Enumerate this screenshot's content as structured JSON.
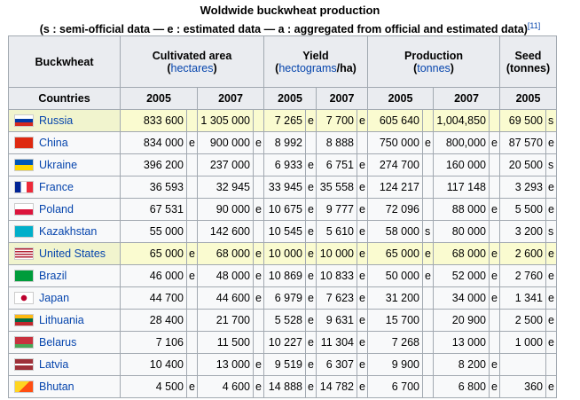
{
  "caption": {
    "title": "Woldwide buckwheat production",
    "subtitle": "(s : semi-official data — e : estimated data — a : aggregated from official and estimated data)",
    "ref": "[11]"
  },
  "headers": {
    "buckwheat": "Buckwheat",
    "area": "Cultivated area",
    "area_unit": "hectares",
    "yield": "Yield",
    "yield_unit_link": "hectograms",
    "yield_unit_rest": "/ha)",
    "production": "Production",
    "production_unit": "tonnes",
    "seed": "Seed",
    "seed_unit": "(tonnes)",
    "countries": "Countries",
    "y2005": "2005",
    "y2007": "2007"
  },
  "rows": [
    {
      "country": "Russia",
      "area05": "833 600",
      "af05": "",
      "area07": "1 305 000",
      "af07": "",
      "yield05": "7 265",
      "yf05": "e",
      "yield07": "7 700",
      "yf07": "e",
      "prod05": "605 640",
      "pf05": "",
      "prod07": "1,004,850",
      "pf07": "",
      "seed05": "69 500",
      "sf05": "s",
      "highlight": true
    },
    {
      "country": "China",
      "area05": "834 000",
      "af05": "e",
      "area07": "900 000",
      "af07": "e",
      "yield05": "8 992",
      "yf05": "",
      "yield07": "8 888",
      "yf07": "",
      "prod05": "750 000",
      "pf05": "e",
      "prod07": "800,000",
      "pf07": "e",
      "seed05": "87 570",
      "sf05": "e",
      "highlight": false
    },
    {
      "country": "Ukraine",
      "area05": "396 200",
      "af05": "",
      "area07": "237 000",
      "af07": "",
      "yield05": "6 933",
      "yf05": "e",
      "yield07": "6 751",
      "yf07": "e",
      "prod05": "274 700",
      "pf05": "",
      "prod07": "160 000",
      "pf07": "",
      "seed05": "20 500",
      "sf05": "s",
      "highlight": false
    },
    {
      "country": "France",
      "area05": "36 593",
      "af05": "",
      "area07": "32 945",
      "af07": "",
      "yield05": "33 945",
      "yf05": "e",
      "yield07": "35 558",
      "yf07": "e",
      "prod05": "124 217",
      "pf05": "",
      "prod07": "117 148",
      "pf07": "",
      "seed05": "3 293",
      "sf05": "e",
      "highlight": false
    },
    {
      "country": "Poland",
      "area05": "67 531",
      "af05": "",
      "area07": "90 000",
      "af07": "e",
      "yield05": "10 675",
      "yf05": "e",
      "yield07": "9 777",
      "yf07": "e",
      "prod05": "72 096",
      "pf05": "",
      "prod07": "88 000",
      "pf07": "e",
      "seed05": "5 500",
      "sf05": "e",
      "highlight": false
    },
    {
      "country": "Kazakhstan",
      "area05": "55 000",
      "af05": "",
      "area07": "142 600",
      "af07": "",
      "yield05": "10 545",
      "yf05": "e",
      "yield07": "5 610",
      "yf07": "e",
      "prod05": "58 000",
      "pf05": "s",
      "prod07": "80 000",
      "pf07": "",
      "seed05": "3 200",
      "sf05": "s",
      "highlight": false
    },
    {
      "country": "United States",
      "area05": "65 000",
      "af05": "e",
      "area07": "68 000",
      "af07": "e",
      "yield05": "10 000",
      "yf05": "e",
      "yield07": "10 000",
      "yf07": "e",
      "prod05": "65 000",
      "pf05": "e",
      "prod07": "68 000",
      "pf07": "e",
      "seed05": "2 600",
      "sf05": "e",
      "highlight": true
    },
    {
      "country": "Brazil",
      "area05": "46 000",
      "af05": "e",
      "area07": "48 000",
      "af07": "e",
      "yield05": "10 869",
      "yf05": "e",
      "yield07": "10 833",
      "yf07": "e",
      "prod05": "50 000",
      "pf05": "e",
      "prod07": "52 000",
      "pf07": "e",
      "seed05": "2 760",
      "sf05": "e",
      "highlight": false
    },
    {
      "country": "Japan",
      "area05": "44 700",
      "af05": "",
      "area07": "44 600",
      "af07": "e",
      "yield05": "6 979",
      "yf05": "e",
      "yield07": "7 623",
      "yf07": "e",
      "prod05": "31 200",
      "pf05": "",
      "prod07": "34 000",
      "pf07": "e",
      "seed05": "1 341",
      "sf05": "e",
      "highlight": false
    },
    {
      "country": "Lithuania",
      "area05": "28 400",
      "af05": "",
      "area07": "21 700",
      "af07": "",
      "yield05": "5 528",
      "yf05": "e",
      "yield07": "9 631",
      "yf07": "e",
      "prod05": "15 700",
      "pf05": "",
      "prod07": "20 900",
      "pf07": "",
      "seed05": "2 500",
      "sf05": "e",
      "highlight": false
    },
    {
      "country": "Belarus",
      "area05": "7 106",
      "af05": "",
      "area07": "11 500",
      "af07": "",
      "yield05": "10 227",
      "yf05": "e",
      "yield07": "11 304",
      "yf07": "e",
      "prod05": "7 268",
      "pf05": "",
      "prod07": "13 000",
      "pf07": "",
      "seed05": "1 000",
      "sf05": "e",
      "highlight": false
    },
    {
      "country": "Latvia",
      "area05": "10 400",
      "af05": "",
      "area07": "13 000",
      "af07": "e",
      "yield05": "9 519",
      "yf05": "e",
      "yield07": "6 307",
      "yf07": "e",
      "prod05": "9 900",
      "pf05": "",
      "prod07": "8 200",
      "pf07": "e",
      "seed05": "",
      "sf05": "",
      "highlight": false
    },
    {
      "country": "Bhutan",
      "area05": "4 500",
      "af05": "e",
      "area07": "4 600",
      "af07": "e",
      "yield05": "14 888",
      "yf05": "e",
      "yield07": "14 782",
      "yf07": "e",
      "prod05": "6 700",
      "pf05": "",
      "prod07": "6 800",
      "pf07": "e",
      "seed05": "360",
      "sf05": "e",
      "highlight": false
    }
  ]
}
